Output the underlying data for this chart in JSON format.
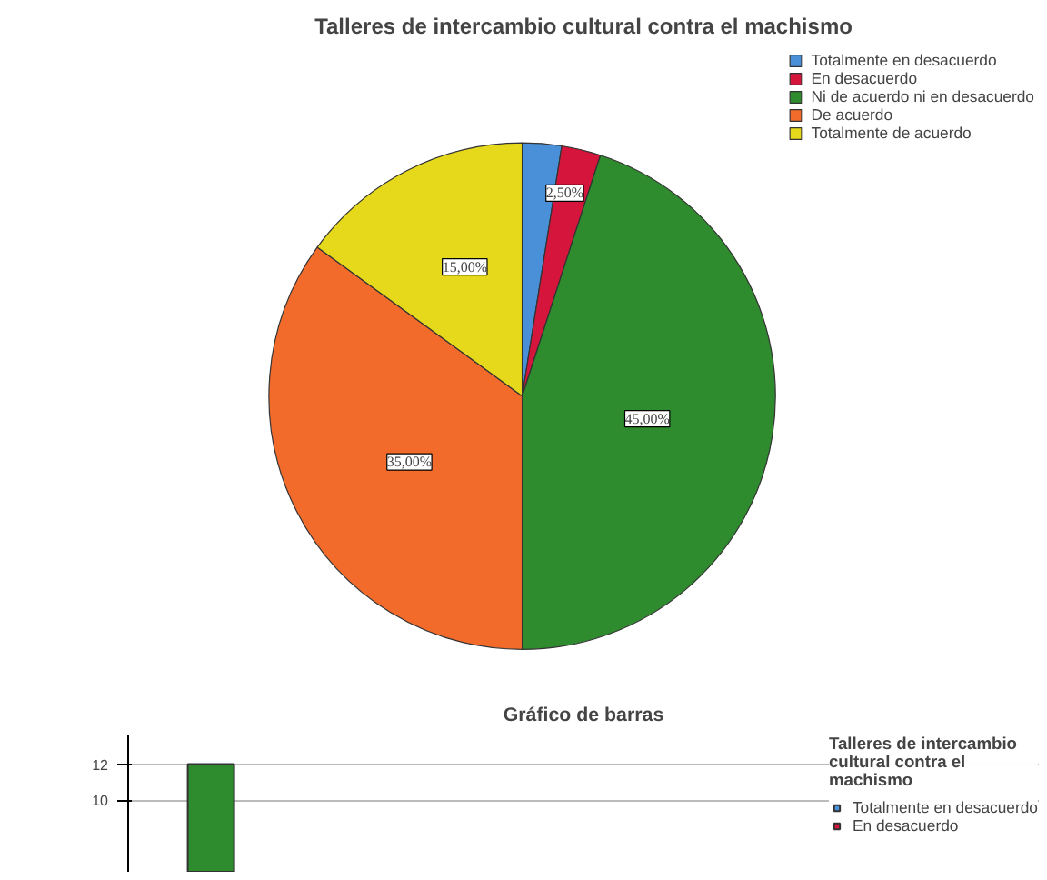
{
  "chart_data": [
    {
      "type": "pie",
      "title": "Talleres de intercambio cultural contra el machismo",
      "categories": [
        "Totalmente en desacuerdo",
        "En desacuerdo",
        "Ni de acuerdo ni en desacuerdo",
        "De acuerdo",
        "Totalmente de acuerdo"
      ],
      "values": [
        2.5,
        2.5,
        45,
        35,
        15
      ],
      "colors": [
        "#4a90d9",
        "#d6153c",
        "#2e8b2e",
        "#f26b2b",
        "#e6d81a"
      ],
      "value_labels": [
        null,
        "2,50%",
        "45,00%",
        "35,00%",
        "15,00%"
      ],
      "legend": "top right"
    },
    {
      "type": "bar",
      "title": "Gráfico de barras",
      "legend_title": "Talleres de intercambio cultural contra el machismo",
      "categories": [
        null,
        null,
        null,
        null
      ],
      "series": [
        {
          "name": "Totalmente en desacuerdo",
          "color": "#4a90d9",
          "values": [
            null,
            null,
            null,
            null
          ]
        },
        {
          "name": "En desacuerdo",
          "color": "#d6153c",
          "values": [
            null,
            null,
            null,
            null
          ]
        },
        {
          "color": "#2e8b2e",
          "values": [
            12,
            null,
            null,
            null
          ]
        }
      ],
      "ylim": [
        6,
        13.6
      ],
      "yticks": [
        10,
        12
      ],
      "grid": "y",
      "legend": "right"
    }
  ]
}
